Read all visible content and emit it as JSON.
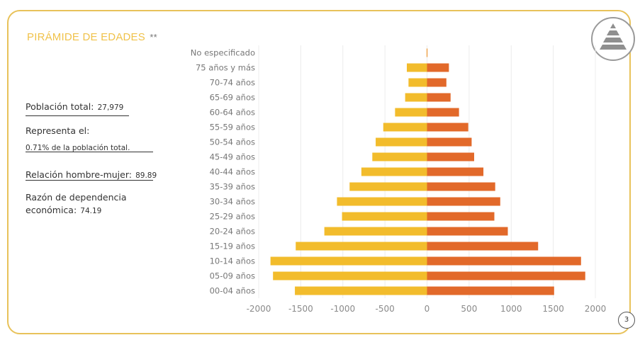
{
  "header": {
    "title": "PIRÁMIDE DE EDADES",
    "title_suffix": "**",
    "page_number": "3",
    "logo_icon": "pyramid-icon"
  },
  "info": {
    "poblacion_label": "Población total:",
    "poblacion_value": "27,979",
    "representa_label": "Representa el:",
    "representa_value": "0.71% de la población total.",
    "relacion_label": "Relación hombre-mujer:",
    "relacion_value": "89.89",
    "razon_label_1": "Razón de dependencia",
    "razon_label_2": "económica:",
    "razon_value": "74.19"
  },
  "colors": {
    "left_bar": "#f2bc2c",
    "right_bar": "#e2692a",
    "border": "#e8c25a",
    "grid": "#ececec"
  },
  "chart_data": {
    "type": "bar",
    "orientation": "horizontal",
    "layout": "population-pyramid",
    "categories": [
      "No especificado",
      "75 años y más",
      "70-74 años",
      "65-69 años",
      "60-64 años",
      "55-59 años",
      "50-54 años",
      "45-49 años",
      "40-44 años",
      "35-39 años",
      "30-34 años",
      "25-29 años",
      "20-24 años",
      "15-19 años",
      "10-14 años",
      "05-09 años",
      "00-04 años"
    ],
    "series": [
      {
        "values": [
          -5,
          -240,
          -220,
          -260,
          -380,
          -520,
          -610,
          -650,
          -780,
          -920,
          -1070,
          -1010,
          -1220,
          -1560,
          -1860,
          -1830,
          -1570
        ]
      },
      {
        "values": [
          5,
          260,
          230,
          280,
          380,
          490,
          530,
          560,
          670,
          810,
          870,
          800,
          960,
          1320,
          1830,
          1880,
          1510
        ]
      }
    ],
    "xlim": [
      -2000,
      2000
    ],
    "xticks": [
      "-2000",
      "-1500",
      "-1000",
      "-500",
      "0",
      "500",
      "1000",
      "1500",
      "2000"
    ],
    "grid": true,
    "legend": "none"
  }
}
